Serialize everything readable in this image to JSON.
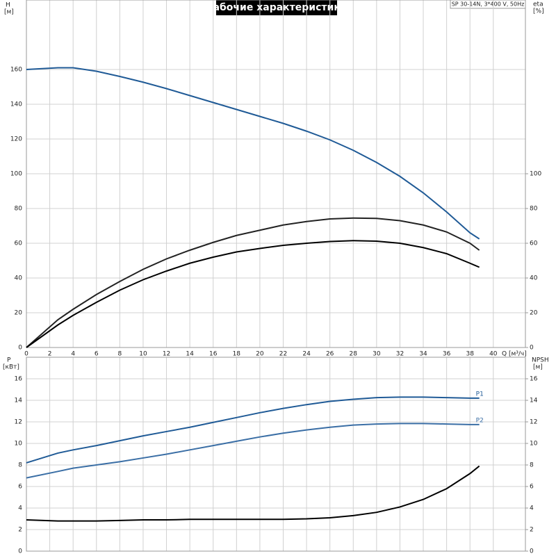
{
  "chart_data": [
    {
      "type": "line",
      "title": "Рабочие характеристики",
      "annotation": "SP 30-14N, 3*400 V, 50Hz",
      "ylabel": "H",
      "ylabel_unit": "[м]",
      "y2label": "eta",
      "y2label_unit": "[%]",
      "xlabel": "Q [м³/ч]",
      "x": [
        0,
        2.7,
        4,
        6,
        8,
        10,
        12,
        14,
        16,
        18,
        20,
        22,
        24,
        26,
        28,
        30,
        32,
        34,
        36,
        38,
        38.8
      ],
      "xlim": [
        0,
        42.75
      ],
      "xticks": [
        0,
        2,
        4,
        6,
        8,
        10,
        12,
        14,
        16,
        18,
        20,
        22,
        24,
        26,
        28,
        30,
        32,
        34,
        36,
        38,
        40
      ],
      "ylim": [
        0,
        200
      ],
      "yticks": [
        0,
        20,
        40,
        60,
        80,
        100,
        120,
        140,
        160
      ],
      "y2lim": [
        0,
        200
      ],
      "y2ticks": [
        0,
        20,
        40,
        60,
        80,
        100
      ],
      "grid": true,
      "series": [
        {
          "color": "#1f5a96",
          "values": [
            160,
            161,
            161,
            159,
            156,
            152.7,
            149,
            145,
            141,
            137,
            133,
            129,
            124.5,
            119.5,
            113.5,
            106.5,
            98.5,
            89,
            78,
            66,
            62.5
          ]
        },
        {
          "color": "#222222",
          "axis": "y2",
          "values": [
            0,
            16,
            22,
            30.5,
            38,
            45,
            51,
            56,
            60.5,
            64.5,
            67.5,
            70.5,
            72.5,
            74,
            74.5,
            74.3,
            73,
            70.5,
            66.5,
            60,
            56
          ]
        },
        {
          "color": "#000000",
          "axis": "y2",
          "values": [
            0,
            13,
            18.5,
            26,
            33,
            39,
            44,
            48.5,
            52,
            55,
            57,
            58.8,
            60,
            61,
            61.5,
            61.2,
            60,
            57.5,
            54,
            48.5,
            46.2
          ]
        }
      ]
    },
    {
      "type": "line",
      "ylabel": "P",
      "ylabel_unit": "[кВт]",
      "y2label": "NPSH",
      "y2label_unit": "[м]",
      "x": [
        0,
        2.7,
        4,
        6,
        8,
        10,
        12,
        14,
        16,
        18,
        20,
        22,
        24,
        26,
        28,
        30,
        32,
        34,
        36,
        38,
        38.8
      ],
      "ylim": [
        0,
        18
      ],
      "yticks": [
        0,
        2,
        4,
        6,
        8,
        10,
        12,
        14,
        16
      ],
      "y2lim": [
        0,
        18
      ],
      "y2ticks": [
        0,
        2,
        4,
        6,
        8,
        10,
        12,
        14,
        16
      ],
      "grid": true,
      "series": [
        {
          "name": "P1",
          "color": "#1f5a96",
          "values": [
            8.2,
            9.1,
            9.4,
            9.8,
            10.25,
            10.7,
            11.1,
            11.5,
            11.95,
            12.4,
            12.85,
            13.25,
            13.6,
            13.9,
            14.1,
            14.25,
            14.3,
            14.3,
            14.25,
            14.2,
            14.2
          ]
        },
        {
          "name": "P2",
          "color": "#3a6ea5",
          "values": [
            6.8,
            7.4,
            7.7,
            8.0,
            8.3,
            8.65,
            9.0,
            9.4,
            9.8,
            10.2,
            10.6,
            10.95,
            11.25,
            11.5,
            11.7,
            11.8,
            11.85,
            11.85,
            11.8,
            11.75,
            11.75
          ]
        },
        {
          "color": "#000000",
          "axis": "y2",
          "values": [
            2.9,
            2.8,
            2.8,
            2.8,
            2.85,
            2.9,
            2.9,
            2.95,
            2.95,
            2.95,
            2.95,
            2.95,
            3.0,
            3.1,
            3.3,
            3.6,
            4.1,
            4.8,
            5.8,
            7.2,
            7.9
          ]
        }
      ]
    }
  ]
}
